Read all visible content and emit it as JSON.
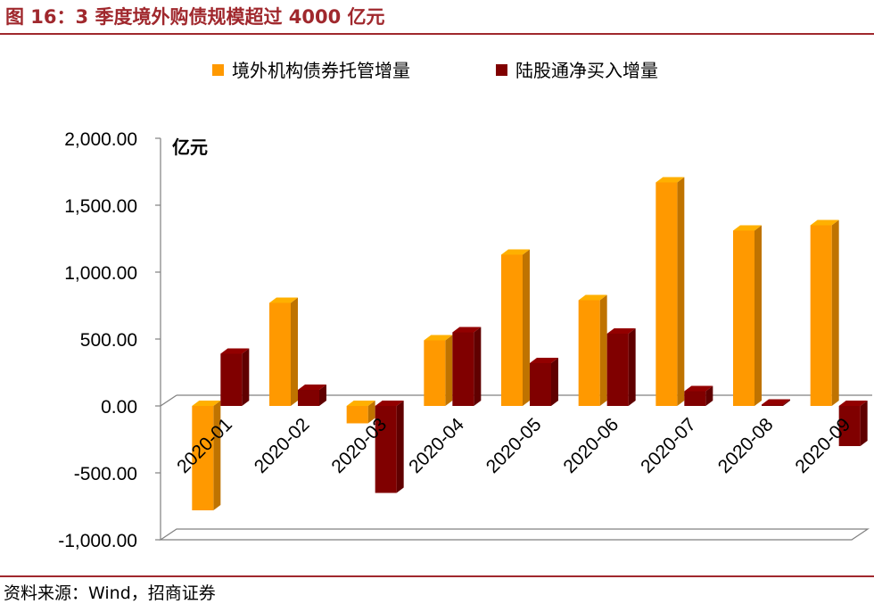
{
  "header": {
    "title": "图 16：3 季度境外购债规模超过 4000 亿元"
  },
  "footer": {
    "source": "资料来源：Wind，招商证券"
  },
  "chart_data": {
    "type": "bar",
    "unit_label": "亿元",
    "categories": [
      "2020-01",
      "2020-02",
      "2020-03",
      "2020-04",
      "2020-05",
      "2020-06",
      "2020-07",
      "2020-08",
      "2020-09"
    ],
    "series": [
      {
        "name": "境外机构债券托管增量",
        "color": "#FF9900",
        "values": [
          -780,
          770,
          -130,
          490,
          1130,
          790,
          1670,
          1310,
          1350
        ]
      },
      {
        "name": "陆股通净买入增量",
        "color": "#800000",
        "values": [
          390,
          120,
          -650,
          550,
          320,
          540,
          110,
          10,
          -300
        ]
      }
    ],
    "ylim": [
      -1000,
      2000
    ],
    "yticks": [
      "2,000.00",
      "1,500.00",
      "1,000.00",
      "500.00",
      "0.00",
      "-500.00",
      "-1,000.00"
    ],
    "ytick_values": [
      2000,
      1500,
      1000,
      500,
      0,
      -500,
      -1000
    ],
    "legend_position": "top",
    "grid": false
  }
}
